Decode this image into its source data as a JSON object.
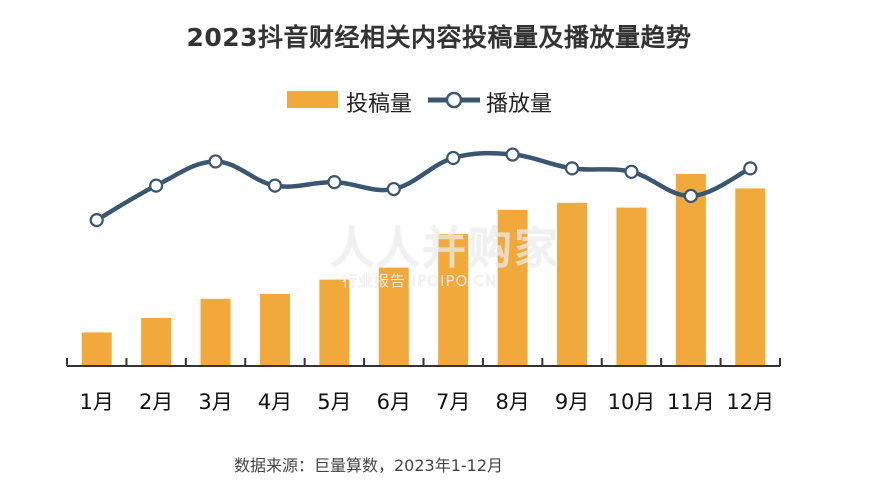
{
  "colors": {
    "bar": "#F2A93B",
    "line": "#3B5670",
    "marker_fill": "#FFFFFF",
    "axis": "#333333"
  },
  "chart_data": {
    "type": "bar",
    "title": "2023抖音财经相关内容投稿量及播放量趋势",
    "categories": [
      "1月",
      "2月",
      "3月",
      "4月",
      "5月",
      "6月",
      "7月",
      "8月",
      "9月",
      "10月",
      "11月",
      "12月"
    ],
    "series": [
      {
        "name": "投稿量",
        "type": "bar",
        "values": [
          14,
          20,
          28,
          30,
          36,
          41,
          55,
          65,
          68,
          66,
          80,
          74
        ]
      },
      {
        "name": "播放量",
        "type": "line",
        "values": [
          62,
          72,
          79,
          72,
          73,
          71,
          80,
          81,
          77,
          76,
          69,
          77
        ]
      }
    ],
    "legend": "top-center",
    "grid": false,
    "yaxis_visible": false
  },
  "watermark": {
    "main": "人人并购家",
    "sub": "行业报告 IPOIPO.CN"
  },
  "source_text": "数据来源：巨量算数，2023年1-12月"
}
